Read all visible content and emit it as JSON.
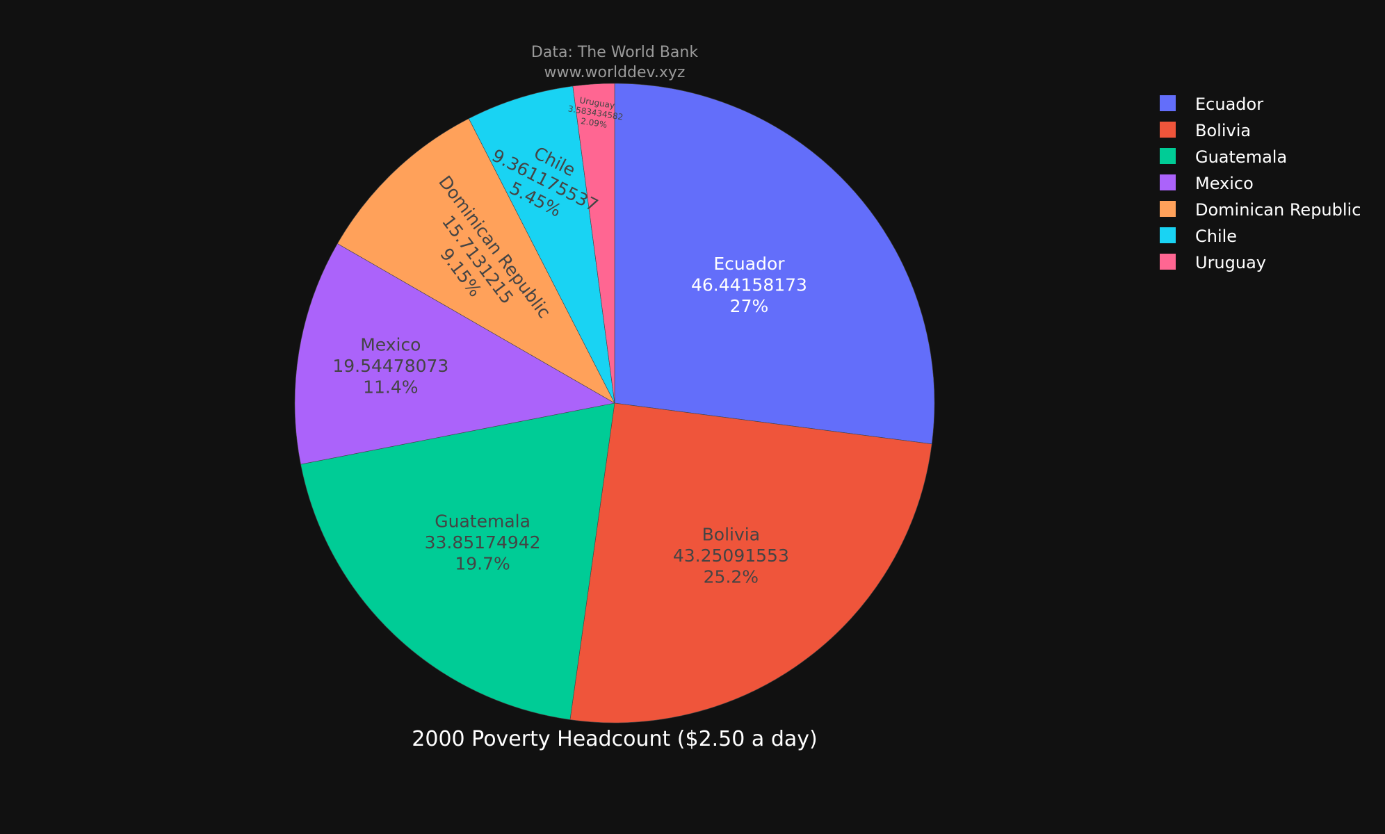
{
  "chart_data": {
    "type": "pie",
    "title": "2000 Poverty Headcount ($2.50 a day)",
    "source_line1": "Data: The World Bank",
    "source_line2": "www.worlddev.xyz",
    "legend_position": "top-right",
    "slices": [
      {
        "label": "Ecuador",
        "value": 46.44158173,
        "percent": "27%",
        "color": "#636efa",
        "text_color": "#ffffff"
      },
      {
        "label": "Bolivia",
        "value": 43.25091553,
        "percent": "25.2%",
        "color": "#ef553b",
        "text_color": "#444444"
      },
      {
        "label": "Guatemala",
        "value": 33.85174942,
        "percent": "19.7%",
        "color": "#00cc96",
        "text_color": "#444444"
      },
      {
        "label": "Mexico",
        "value": 19.54478073,
        "percent": "11.4%",
        "color": "#ab63fa",
        "text_color": "#444444"
      },
      {
        "label": "Dominican Republic",
        "value": 15.7131215,
        "percent": "9.15%",
        "color": "#ffa15a",
        "text_color": "#444444"
      },
      {
        "label": "Chile",
        "value": 9.361175537,
        "percent": "5.45%",
        "color": "#19d3f3",
        "text_color": "#444444"
      },
      {
        "label": "Uruguay",
        "value": 3.583434582,
        "percent": "2.09%",
        "color": "#ff6692",
        "text_color": "#444444"
      }
    ]
  }
}
